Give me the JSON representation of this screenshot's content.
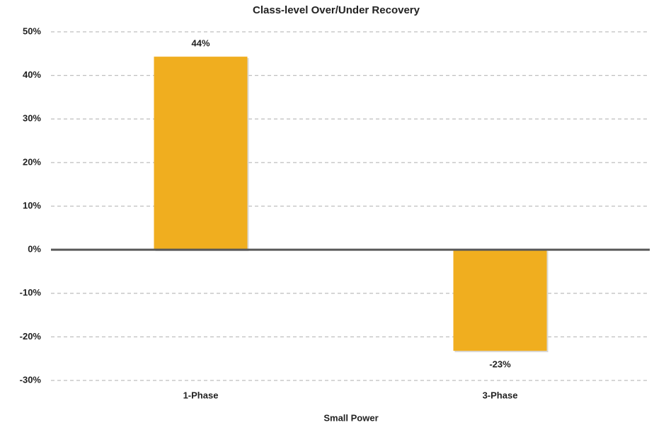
{
  "chart_data": {
    "type": "bar",
    "title": "Class-level Over/Under Recovery",
    "x_label": "Small Power",
    "categories": [
      "1-Phase",
      "3-Phase"
    ],
    "values": [
      44.3,
      -23.2
    ],
    "value_labels": [
      "44%",
      "-23%"
    ],
    "color": "#f0ae1f",
    "ylim": [
      -30,
      50
    ],
    "yticks": [
      {
        "value": -30,
        "label": "-30%"
      },
      {
        "value": -20,
        "label": "-20%"
      },
      {
        "value": -10,
        "label": "-10%"
      },
      {
        "value": 0,
        "label": "0%"
      },
      {
        "value": 10,
        "label": "10%"
      },
      {
        "value": 20,
        "label": "20%"
      },
      {
        "value": 30,
        "label": "30%"
      },
      {
        "value": 40,
        "label": "40%"
      },
      {
        "value": 50,
        "label": "50%"
      }
    ],
    "grid": true
  }
}
